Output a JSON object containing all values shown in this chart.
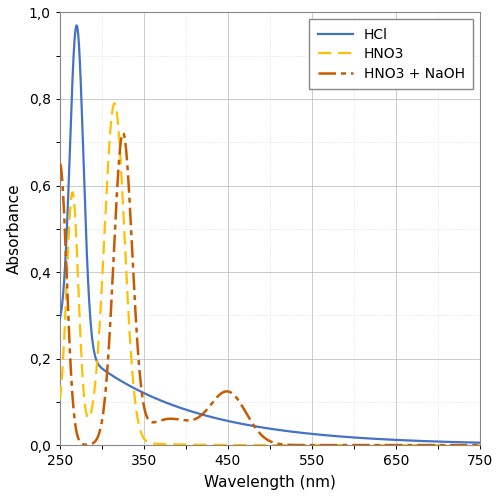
{
  "xlabel": "Wavelength (nm)",
  "ylabel": "Absorbance",
  "xlim": [
    250,
    750
  ],
  "ylim": [
    0.0,
    1.0
  ],
  "xticks": [
    250,
    350,
    450,
    550,
    650,
    750
  ],
  "yticks": [
    0.0,
    0.2,
    0.4,
    0.6,
    0.8,
    1.0
  ],
  "ytick_labels": [
    "0,0",
    "0,2",
    "0,4",
    "0,6",
    "0,8",
    "1,0"
  ],
  "xtick_labels": [
    "250",
    "350",
    "450",
    "550",
    "650",
    "750"
  ],
  "legend": [
    "HCl",
    "HNO3",
    "HNO3 + NaOH"
  ],
  "hcl_color": "#4472C4",
  "hno3_color": "#FFC000",
  "hno3naoh_color": "#C85A00",
  "background_color": "#FFFFFF",
  "grid_major_color": "#AAAAAA",
  "grid_minor_color": "#CCCCCC",
  "figsize": [
    5.0,
    4.97
  ],
  "dpi": 100
}
